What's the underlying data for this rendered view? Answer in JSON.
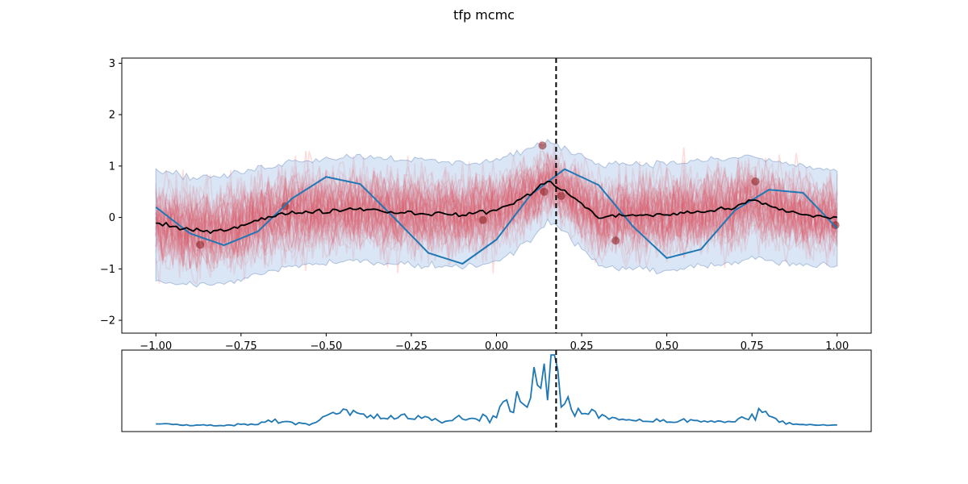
{
  "figure": {
    "title": "tfp mcmc"
  },
  "chart_data": [
    {
      "type": "line",
      "panel": "main",
      "title": "",
      "xlabel": "",
      "ylabel": "",
      "xlim": [
        -1.1,
        1.1
      ],
      "ylim": [
        -2.25,
        3.1
      ],
      "xticks": [
        -1.0,
        -0.75,
        -0.5,
        -0.25,
        0.0,
        0.25,
        0.5,
        0.75,
        1.0
      ],
      "xtick_labels": [
        "−1.00",
        "−0.75",
        "−0.50",
        "−0.25",
        "0.00",
        "0.25",
        "0.50",
        "0.75",
        "1.00"
      ],
      "yticks": [
        -2,
        -1,
        0,
        1,
        2,
        3
      ],
      "ytick_labels": [
        "−2",
        "−1",
        "0",
        "1",
        "2",
        "3"
      ],
      "grid": false,
      "vline_x": 0.175,
      "series": [
        {
          "role": "true-function",
          "color": "#1f77b4",
          "x": [
            -1.0,
            -0.9,
            -0.8,
            -0.7,
            -0.6,
            -0.5,
            -0.4,
            -0.3,
            -0.2,
            -0.1,
            0.0,
            0.1,
            0.2,
            0.3,
            0.4,
            0.5,
            0.6,
            0.7,
            0.8,
            0.9,
            1.0
          ],
          "y": [
            0.2,
            -0.31,
            -0.54,
            -0.27,
            0.37,
            0.79,
            0.65,
            -0.01,
            -0.69,
            -0.9,
            -0.43,
            0.44,
            0.94,
            0.63,
            -0.17,
            -0.79,
            -0.62,
            0.14,
            0.54,
            0.48,
            -0.21
          ]
        },
        {
          "role": "posterior-mean",
          "color": "#000000",
          "x": [
            -1.0,
            -0.9,
            -0.8,
            -0.7,
            -0.6,
            -0.5,
            -0.4,
            -0.3,
            -0.2,
            -0.1,
            0.0,
            0.1,
            0.15,
            0.2,
            0.3,
            0.4,
            0.5,
            0.6,
            0.7,
            0.75,
            0.8,
            0.9,
            1.0
          ],
          "y": [
            -0.12,
            -0.25,
            -0.25,
            -0.05,
            0.1,
            0.12,
            0.18,
            0.1,
            0.08,
            0.05,
            0.14,
            0.45,
            0.72,
            0.52,
            0.0,
            0.05,
            0.05,
            0.12,
            0.18,
            0.35,
            0.22,
            0.05,
            0.0
          ]
        },
        {
          "role": "credible-band",
          "color": "#aec7e8",
          "x": [
            -1.0,
            -0.9,
            -0.8,
            -0.7,
            -0.6,
            -0.5,
            -0.4,
            -0.3,
            -0.2,
            -0.1,
            0.0,
            0.1,
            0.15,
            0.2,
            0.3,
            0.4,
            0.5,
            0.6,
            0.7,
            0.75,
            0.8,
            0.9,
            1.0
          ],
          "upper": [
            0.95,
            0.78,
            0.8,
            0.95,
            1.1,
            1.15,
            1.2,
            1.15,
            1.1,
            1.05,
            1.12,
            1.35,
            1.45,
            1.35,
            1.05,
            1.05,
            1.05,
            1.1,
            1.15,
            1.2,
            1.1,
            1.0,
            0.9
          ],
          "lower": [
            -1.25,
            -1.3,
            -1.3,
            -1.1,
            -0.95,
            -0.9,
            -0.85,
            -0.9,
            -0.95,
            -0.95,
            -0.85,
            -0.45,
            -0.05,
            -0.3,
            -0.95,
            -1.0,
            -1.05,
            -0.95,
            -0.9,
            -0.75,
            -0.85,
            -0.95,
            -0.95
          ]
        }
      ],
      "observations": {
        "color": "#8b1a1a",
        "x": [
          -0.87,
          -0.62,
          -0.04,
          0.135,
          0.14,
          0.19,
          0.35,
          0.76,
          0.995
        ],
        "y": [
          -0.53,
          0.22,
          -0.05,
          1.4,
          0.5,
          0.42,
          -0.45,
          0.7,
          -0.15
        ]
      },
      "posterior_samples": {
        "color": "#ff0000",
        "count": 60
      }
    },
    {
      "type": "line",
      "panel": "bottom",
      "title": "",
      "xlim": [
        -1.1,
        1.1
      ],
      "grid": false,
      "vline_x": 0.175,
      "series": [
        {
          "color": "#1f77b4",
          "x": [
            -1.0,
            -0.95,
            -0.9,
            -0.85,
            -0.8,
            -0.75,
            -0.7,
            -0.65,
            -0.6,
            -0.55,
            -0.5,
            -0.45,
            -0.4,
            -0.35,
            -0.3,
            -0.25,
            -0.2,
            -0.15,
            -0.1,
            -0.05,
            0.0,
            0.02,
            0.05,
            0.08,
            0.1,
            0.12,
            0.13,
            0.14,
            0.15,
            0.16,
            0.17,
            0.175,
            0.19,
            0.21,
            0.25,
            0.3,
            0.35,
            0.4,
            0.45,
            0.5,
            0.55,
            0.6,
            0.65,
            0.7,
            0.75,
            0.78,
            0.8,
            0.85,
            0.9,
            0.95,
            1.0
          ],
          "y": [
            0.04,
            0.03,
            0.02,
            0.02,
            0.02,
            0.03,
            0.04,
            0.1,
            0.06,
            0.04,
            0.14,
            0.2,
            0.16,
            0.12,
            0.14,
            0.13,
            0.1,
            0.08,
            0.12,
            0.1,
            0.18,
            0.32,
            0.38,
            0.3,
            0.55,
            0.72,
            0.5,
            0.78,
            0.6,
            0.92,
            0.85,
            1.0,
            0.3,
            0.25,
            0.2,
            0.16,
            0.12,
            0.1,
            0.09,
            0.08,
            0.08,
            0.07,
            0.08,
            0.06,
            0.18,
            0.22,
            0.12,
            0.05,
            0.03,
            0.02,
            0.02
          ]
        }
      ]
    }
  ]
}
